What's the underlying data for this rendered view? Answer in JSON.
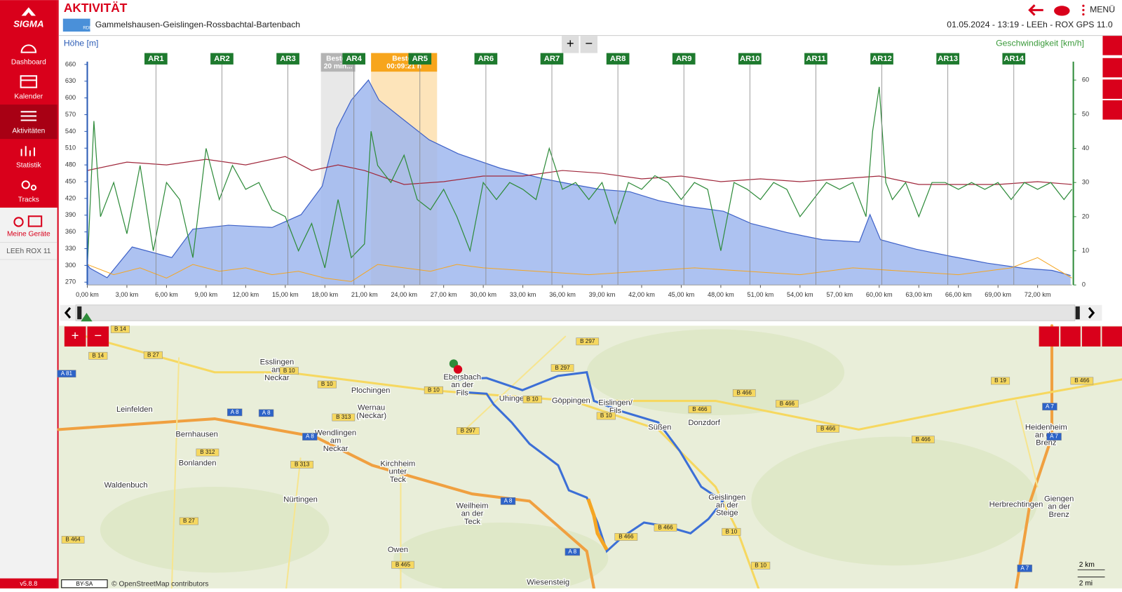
{
  "sidebar": {
    "logo": "SIGMA",
    "nav": [
      "Dashboard",
      "Kalender",
      "Aktivitäten",
      "Statistik",
      "Tracks",
      "Meine Geräte"
    ],
    "device": "LEEh ROX 11",
    "version": "v5.8.8"
  },
  "header": {
    "title": "AKTIVITÄT",
    "badge": "RDB",
    "route": "Gammelshausen-Geislingen-Rossbachtal-Bartenbach",
    "info": "01.05.2024 - 13:19 - LEEh - ROX GPS 11.0",
    "menu": "MENÜ"
  },
  "chart": {
    "y_label": "Höhe [m]",
    "y2_label": "Geschwindigkeit [km/h]",
    "zoom": [
      "+",
      "−"
    ],
    "xlim": [
      0,
      74.6
    ],
    "ylim": [
      265,
      665
    ],
    "y2lim": [
      0,
      65.4
    ],
    "yticks": [
      270,
      300,
      330,
      360,
      390,
      420,
      450,
      480,
      510,
      540,
      570,
      600,
      630,
      660
    ],
    "y2ticks": [
      0,
      10,
      20,
      30,
      40,
      50,
      60
    ],
    "xticks": [
      {
        "value": 0,
        "label": "0,00 km"
      },
      {
        "value": 3,
        "label": "3,00 km"
      },
      {
        "value": 6,
        "label": "6,00 km"
      },
      {
        "value": 9,
        "label": "9,00 km"
      },
      {
        "value": 12,
        "label": "12,00 km"
      },
      {
        "value": 15,
        "label": "15,00 km"
      },
      {
        "value": 18,
        "label": "18,00 km"
      },
      {
        "value": 21,
        "label": "21,00 km"
      },
      {
        "value": 24,
        "label": "24,00 km"
      },
      {
        "value": 27,
        "label": "27,00 km"
      },
      {
        "value": 30,
        "label": "30,00 km"
      },
      {
        "value": 33,
        "label": "33,00 km"
      },
      {
        "value": 36,
        "label": "36,00 km"
      },
      {
        "value": 39,
        "label": "39,00 km"
      },
      {
        "value": 42,
        "label": "42,00 km"
      },
      {
        "value": 45,
        "label": "45,00 km"
      },
      {
        "value": 48,
        "label": "48,00 km"
      },
      {
        "value": 51,
        "label": "51,00 km"
      },
      {
        "value": 54,
        "label": "54,00 km"
      },
      {
        "value": 57,
        "label": "57,00 km"
      },
      {
        "value": 60,
        "label": "60,00 km"
      },
      {
        "value": 63,
        "label": "63,00 km"
      },
      {
        "value": 66,
        "label": "66,00 km"
      },
      {
        "value": 69,
        "label": "69,00 km"
      },
      {
        "value": 72,
        "label": "72,00 km"
      }
    ],
    "laps": {
      "labels": [
        "AR1",
        "AR2",
        "AR3",
        "AR4",
        "AR5",
        "AR6",
        "AR7",
        "AR8",
        "AR9",
        "AR10",
        "AR11",
        "AR12",
        "AR13",
        "AR14"
      ],
      "x": [
        5.2,
        10.2,
        15.2,
        20.2,
        25.2,
        30.2,
        35.2,
        40.2,
        45.2,
        50.2,
        55.2,
        60.2,
        65.2,
        70.2
      ]
    },
    "best": [
      {
        "lines": [
          "Besten",
          "20 min..."
        ],
        "x": [
          17.7,
          20.3
        ],
        "color": "#b4b4b4"
      },
      {
        "lines": [
          "Besten",
          "00:09:21 h"
        ],
        "x": [
          21.5,
          26.5
        ],
        "color": "#f7a51c"
      }
    ],
    "elevation": {
      "color": "#3f62c8",
      "x": [
        0,
        0.2,
        1.5,
        3.4,
        6.4,
        8,
        10.7,
        14,
        16.2,
        17.8,
        18.9,
        20,
        21.3,
        22.1,
        23.8,
        25.9,
        28.1,
        31.3,
        34.6,
        36.8,
        38.9,
        41.1,
        43.3,
        45.4,
        48.2,
        50.3,
        53,
        55.7,
        58.5,
        59.3,
        60.1,
        62.8,
        65.5,
        68.2,
        70.9,
        73.1,
        74.5
      ],
      "values": [
        301,
        295,
        278,
        333,
        314,
        365,
        372,
        368,
        391,
        442,
        545,
        596,
        632,
        596,
        564,
        525,
        500,
        474,
        455,
        445,
        436,
        432,
        416,
        406,
        397,
        375,
        359,
        346,
        342,
        391,
        346,
        329,
        316,
        304,
        295,
        291,
        282
      ]
    },
    "speed": {
      "color": "#2e8b3a",
      "x": [
        0,
        0.5,
        1,
        2,
        3,
        4,
        5,
        6,
        7,
        8,
        9,
        10,
        11,
        12,
        13,
        14,
        15,
        16,
        17,
        18,
        19,
        20,
        21,
        21.5,
        22,
        23,
        24,
        25,
        26,
        27,
        28,
        29,
        30,
        31,
        32,
        33,
        34,
        35,
        36,
        37,
        38,
        39,
        40,
        41,
        42,
        43,
        44,
        45,
        46,
        47,
        48,
        49,
        50,
        51,
        52,
        53,
        54,
        55,
        56,
        57,
        58,
        59,
        59.5,
        60,
        60.5,
        61,
        62,
        63,
        64,
        65,
        66,
        67,
        68,
        69,
        70,
        71,
        72,
        73,
        74,
        74.6
      ],
      "values": [
        5,
        48,
        20,
        30,
        15,
        35,
        10,
        30,
        25,
        8,
        40,
        25,
        35,
        28,
        30,
        22,
        20,
        10,
        18,
        5,
        25,
        8,
        12,
        45,
        35,
        30,
        38,
        25,
        22,
        28,
        20,
        10,
        30,
        25,
        30,
        28,
        25,
        40,
        28,
        30,
        25,
        30,
        18,
        30,
        28,
        32,
        30,
        25,
        30,
        28,
        10,
        30,
        28,
        25,
        30,
        28,
        20,
        25,
        30,
        28,
        30,
        20,
        45,
        58,
        30,
        25,
        30,
        20,
        30,
        30,
        28,
        30,
        28,
        30,
        25,
        30,
        28,
        30,
        25,
        28
      ]
    },
    "heart": {
      "color": "#a0283c",
      "x": [
        0,
        3,
        6,
        9,
        12,
        15,
        17,
        19,
        21,
        24,
        27,
        30,
        33,
        36,
        39,
        42,
        45,
        48,
        51,
        54,
        57,
        60,
        63,
        66,
        69,
        72,
        74.6
      ],
      "values": [
        470,
        485,
        480,
        490,
        480,
        495,
        470,
        480,
        470,
        445,
        450,
        460,
        460,
        470,
        465,
        455,
        460,
        450,
        455,
        450,
        455,
        460,
        445,
        445,
        445,
        450,
        445
      ]
    },
    "cadence": {
      "color": "#f5a623",
      "x": [
        0,
        2,
        4,
        6,
        8,
        10,
        12,
        14,
        16,
        18,
        20,
        22,
        24,
        26,
        28,
        30,
        34,
        38,
        42,
        46,
        50,
        54,
        58,
        62,
        66,
        70,
        72,
        74.6
      ],
      "values": [
        6,
        3,
        5,
        2,
        6,
        4,
        5,
        3,
        4,
        2,
        1,
        6,
        5,
        4,
        6,
        5,
        4,
        3,
        4,
        5,
        4,
        3,
        5,
        4,
        3,
        5,
        8,
        2
      ]
    }
  },
  "map": {
    "towns": [
      {
        "lines": [
          "Esslingen",
          "am",
          "Neckar"
        ]
      },
      {
        "lines": [
          "Plochingen"
        ]
      },
      {
        "lines": [
          "Wernau",
          "(Neckar)"
        ]
      },
      {
        "lines": [
          "Leinfelden"
        ]
      },
      {
        "lines": [
          "Bernhausen"
        ]
      },
      {
        "lines": [
          "Wendlingen",
          "am",
          "Neckar"
        ]
      },
      {
        "lines": [
          "Bonlanden"
        ]
      },
      {
        "lines": [
          "Kirchheim",
          "unter",
          "Teck"
        ]
      },
      {
        "lines": [
          "Waldenbuch"
        ]
      },
      {
        "lines": [
          "Nürtingen"
        ]
      },
      {
        "lines": [
          "Weilheim",
          "an der",
          "Teck"
        ]
      },
      {
        "lines": [
          "Owen"
        ]
      },
      {
        "lines": [
          "Wiesensteig"
        ]
      },
      {
        "lines": [
          "Uhingen"
        ]
      },
      {
        "lines": [
          "Göppingen"
        ]
      },
      {
        "lines": [
          "Eislingen/",
          "Fils"
        ]
      },
      {
        "lines": [
          "Süßen"
        ]
      },
      {
        "lines": [
          "Donzdorf"
        ]
      },
      {
        "lines": [
          "Geislingen",
          "an der",
          "Steige"
        ]
      },
      {
        "lines": [
          "Heidenheim",
          "an der",
          "Brenz"
        ]
      },
      {
        "lines": [
          "Herbrechtingen"
        ]
      },
      {
        "lines": [
          "Giengen",
          "an der",
          "Brenz"
        ]
      },
      {
        "lines": [
          "Ebersbach",
          "an der",
          "Fils"
        ]
      }
    ],
    "roads": [
      "B 14",
      "B 14",
      "B 27",
      "A 81",
      "B 10",
      "B 10",
      "A 8",
      "A 8",
      "B 313",
      "B 297",
      "B 10",
      "B 10",
      "B 297",
      "B 297",
      "B 10",
      "B 466",
      "B 466",
      "B 466",
      "B 466",
      "A 7",
      "A 7",
      "B 19",
      "B 466",
      "B 466",
      "B 10",
      "B 466",
      "B 466",
      "A 8",
      "A 8",
      "A 8",
      "B 312",
      "B 313",
      "B 27",
      "B 464",
      "B 465",
      "B 10",
      "A 7"
    ],
    "license": "BY-SA",
    "attribution": "© OpenStreetMap contributors",
    "scale": [
      "2 km",
      "2 mi"
    ],
    "zoom": [
      "+",
      "−"
    ]
  }
}
